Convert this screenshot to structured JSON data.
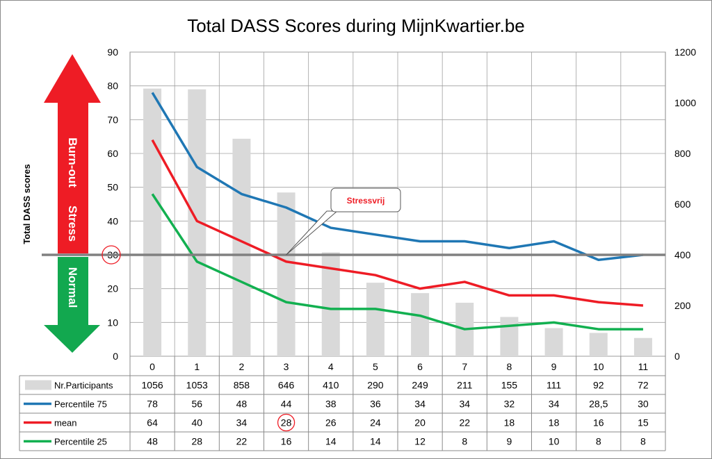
{
  "chart_data": {
    "type": "bar+line",
    "title": "Total DASS Scores during MijnKwartier.be",
    "ylabel": "Total DASS scores",
    "ylim": [
      0,
      90
    ],
    "y_ticks": [
      "0",
      "10",
      "20",
      "30",
      "40",
      "50",
      "60",
      "70",
      "80",
      "90"
    ],
    "y2lim": [
      0,
      1200
    ],
    "y2_ticks": [
      "0",
      "200",
      "400",
      "600",
      "800",
      "1000",
      "1200"
    ],
    "categories": [
      "0",
      "1",
      "2",
      "3",
      "4",
      "5",
      "6",
      "7",
      "8",
      "9",
      "10",
      "11"
    ],
    "bars": {
      "name": "Nr.Participants",
      "axis": "right",
      "color": "#d9d9d9",
      "values": [
        1056,
        1053,
        858,
        646,
        410,
        290,
        249,
        211,
        155,
        111,
        92,
        72
      ]
    },
    "series": [
      {
        "name": "Percentile 75",
        "color": "#1f77b4",
        "values": [
          78,
          56,
          48,
          44,
          38,
          36,
          34,
          34,
          32,
          34,
          28.5,
          30
        ],
        "labels": [
          "78",
          "56",
          "48",
          "44",
          "38",
          "36",
          "34",
          "34",
          "32",
          "34",
          "28,5",
          "30"
        ]
      },
      {
        "name": "mean",
        "color": "#ee1c25",
        "values": [
          64,
          40,
          34,
          28,
          26,
          24,
          20,
          22,
          18,
          18,
          16,
          15
        ],
        "labels": [
          "64",
          "40",
          "34",
          "28",
          "26",
          "24",
          "20",
          "22",
          "18",
          "18",
          "16",
          "15"
        ]
      },
      {
        "name": "Percentile 25",
        "color": "#12b050",
        "values": [
          48,
          28,
          22,
          16,
          14,
          14,
          12,
          8,
          9,
          10,
          8,
          8
        ],
        "labels": [
          "48",
          "28",
          "22",
          "16",
          "14",
          "14",
          "12",
          "8",
          "9",
          "10",
          "8",
          "8"
        ]
      }
    ],
    "bar_labels": [
      "1056",
      "1053",
      "858",
      "646",
      "410",
      "290",
      "249",
      "211",
      "155",
      "111",
      "92",
      "72"
    ],
    "threshold": {
      "value": 30,
      "label": "30",
      "color": "#808080"
    },
    "callout": {
      "text": "Stressvrij",
      "color": "#ee1c25",
      "target_category": "3"
    },
    "highlight": {
      "series": "mean",
      "category": "3"
    },
    "arrows": {
      "up": {
        "labels": [
          "Burn-out",
          "Stress"
        ],
        "color": "#ee1c25"
      },
      "down": {
        "labels": [
          "Normal"
        ],
        "color": "#12a84f"
      }
    },
    "grid": true
  }
}
